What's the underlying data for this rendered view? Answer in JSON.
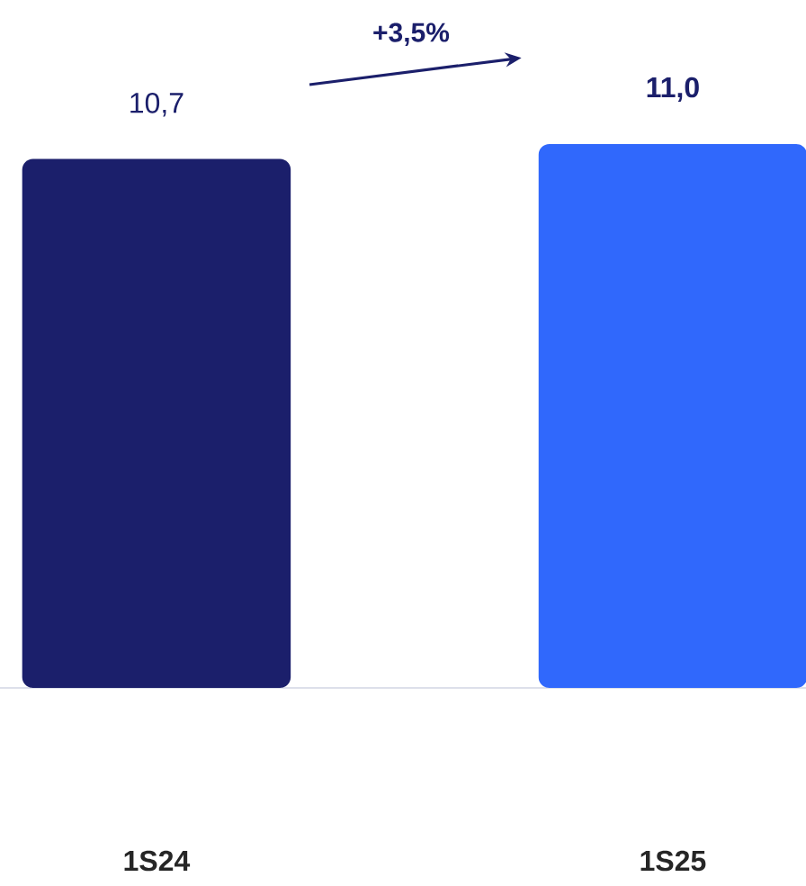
{
  "chart_data": {
    "type": "bar",
    "categories": [
      "1S24",
      "1S25"
    ],
    "values": [
      10.7,
      11.0
    ],
    "value_labels": [
      "10,7",
      "11,0"
    ],
    "colors": [
      "#1b1f6b",
      "#3068fc"
    ],
    "annotations": [
      "+3,5%"
    ]
  }
}
